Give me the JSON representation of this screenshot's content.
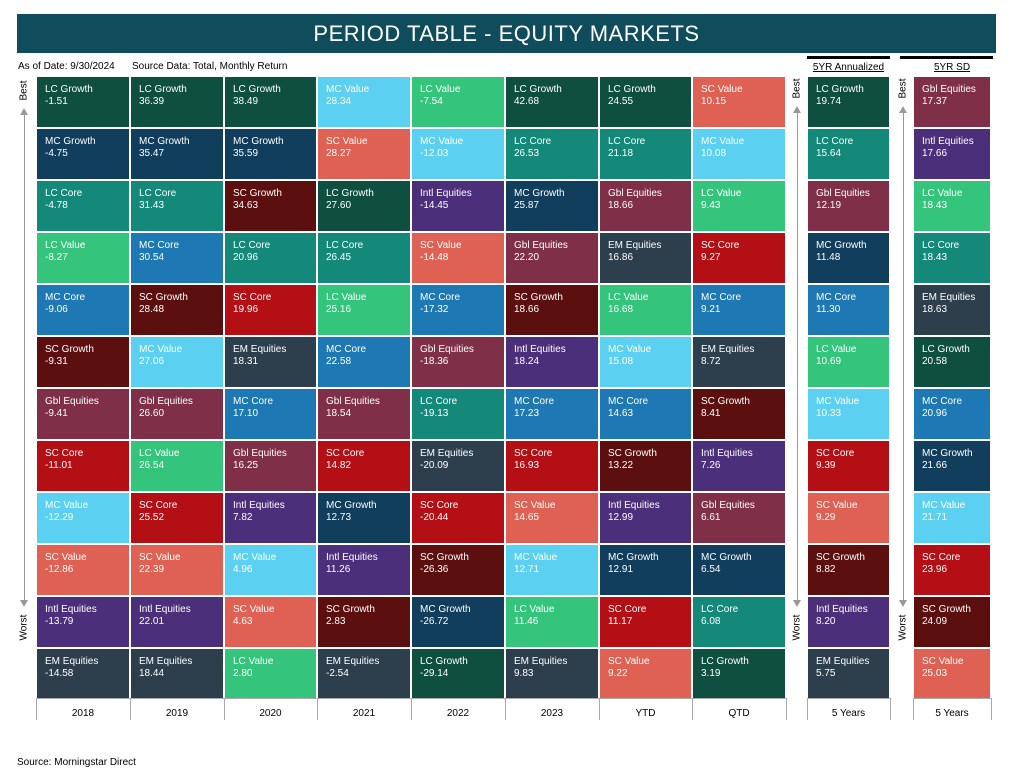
{
  "header": {
    "title": "PERIOD TABLE - EQUITY MARKETS",
    "as_of": "As of Date: 9/30/2024",
    "source_data": "Source Data: Total, Monthly Return",
    "annualized_title": "5YR Annualized",
    "sd_title": "5YR SD",
    "best_label": "Best",
    "worst_label": "Worst"
  },
  "footer": {
    "source": "Source: Morningstar Direct"
  },
  "colors": {
    "LC Growth": "#0f4f3f",
    "MC Growth": "#103e5c",
    "LC Core": "#14897a",
    "LC Value": "#34c47c",
    "MC Core": "#1e78b4",
    "SC Growth": "#5c0f0f",
    "Gbl Equities": "#7f2f48",
    "SC Core": "#b30f14",
    "MC Value": "#5cd0f0",
    "SC Value": "#de6154",
    "Intl Equities": "#4b2f7a",
    "EM Equities": "#2d3f4d"
  },
  "chart_data": {
    "type": "table",
    "title": "PERIOD TABLE - EQUITY MARKETS",
    "columns": [
      {
        "label": "2018",
        "cells": [
          {
            "name": "LC Growth",
            "value": "-1.51"
          },
          {
            "name": "MC Growth",
            "value": "-4.75"
          },
          {
            "name": "LC Core",
            "value": "-4.78"
          },
          {
            "name": "LC Value",
            "value": "-8.27"
          },
          {
            "name": "MC Core",
            "value": "-9.06"
          },
          {
            "name": "SC Growth",
            "value": "-9.31"
          },
          {
            "name": "Gbl Equities",
            "value": "-9.41"
          },
          {
            "name": "SC Core",
            "value": "-11.01"
          },
          {
            "name": "MC Value",
            "value": "-12.29"
          },
          {
            "name": "SC Value",
            "value": "-12.86"
          },
          {
            "name": "Intl Equities",
            "value": "-13.79"
          },
          {
            "name": "EM Equities",
            "value": "-14.58"
          }
        ]
      },
      {
        "label": "2019",
        "cells": [
          {
            "name": "LC Growth",
            "value": "36.39"
          },
          {
            "name": "MC Growth",
            "value": "35.47"
          },
          {
            "name": "LC Core",
            "value": "31.43"
          },
          {
            "name": "MC Core",
            "value": "30.54"
          },
          {
            "name": "SC Growth",
            "value": "28.48"
          },
          {
            "name": "MC Value",
            "value": "27.06"
          },
          {
            "name": "Gbl Equities",
            "value": "26.60"
          },
          {
            "name": "LC Value",
            "value": "26.54"
          },
          {
            "name": "SC Core",
            "value": "25.52"
          },
          {
            "name": "SC Value",
            "value": "22.39"
          },
          {
            "name": "Intl Equities",
            "value": "22.01"
          },
          {
            "name": "EM Equities",
            "value": "18.44"
          }
        ]
      },
      {
        "label": "2020",
        "cells": [
          {
            "name": "LC Growth",
            "value": "38.49"
          },
          {
            "name": "MC Growth",
            "value": "35.59"
          },
          {
            "name": "SC Growth",
            "value": "34.63"
          },
          {
            "name": "LC Core",
            "value": "20.96"
          },
          {
            "name": "SC Core",
            "value": "19.96"
          },
          {
            "name": "EM Equities",
            "value": "18.31"
          },
          {
            "name": "MC Core",
            "value": "17.10"
          },
          {
            "name": "Gbl Equities",
            "value": "16.25"
          },
          {
            "name": "Intl Equities",
            "value": "7.82"
          },
          {
            "name": "MC Value",
            "value": "4.96"
          },
          {
            "name": "SC Value",
            "value": "4.63"
          },
          {
            "name": "LC Value",
            "value": "2.80"
          }
        ]
      },
      {
        "label": "2021",
        "cells": [
          {
            "name": "MC Value",
            "value": "28.34"
          },
          {
            "name": "SC Value",
            "value": "28.27"
          },
          {
            "name": "LC Growth",
            "value": "27.60"
          },
          {
            "name": "LC Core",
            "value": "26.45"
          },
          {
            "name": "LC Value",
            "value": "25.16"
          },
          {
            "name": "MC Core",
            "value": "22.58"
          },
          {
            "name": "Gbl Equities",
            "value": "18.54"
          },
          {
            "name": "SC Core",
            "value": "14.82"
          },
          {
            "name": "MC Growth",
            "value": "12.73"
          },
          {
            "name": "Intl Equities",
            "value": "11.26"
          },
          {
            "name": "SC Growth",
            "value": "2.83"
          },
          {
            "name": "EM Equities",
            "value": "-2.54"
          }
        ]
      },
      {
        "label": "2022",
        "cells": [
          {
            "name": "LC Value",
            "value": "-7.54"
          },
          {
            "name": "MC Value",
            "value": "-12.03"
          },
          {
            "name": "Intl Equities",
            "value": "-14.45"
          },
          {
            "name": "SC Value",
            "value": "-14.48"
          },
          {
            "name": "MC Core",
            "value": "-17.32"
          },
          {
            "name": "Gbl Equities",
            "value": "-18.36"
          },
          {
            "name": "LC Core",
            "value": "-19.13"
          },
          {
            "name": "EM Equities",
            "value": "-20.09"
          },
          {
            "name": "SC Core",
            "value": "-20.44"
          },
          {
            "name": "SC Growth",
            "value": "-26.36"
          },
          {
            "name": "MC Growth",
            "value": "-26.72"
          },
          {
            "name": "LC Growth",
            "value": "-29.14"
          }
        ]
      },
      {
        "label": "2023",
        "cells": [
          {
            "name": "LC Growth",
            "value": "42.68"
          },
          {
            "name": "LC Core",
            "value": "26.53"
          },
          {
            "name": "MC Growth",
            "value": "25.87"
          },
          {
            "name": "Gbl Equities",
            "value": "22.20"
          },
          {
            "name": "SC Growth",
            "value": "18.66"
          },
          {
            "name": "Intl Equities",
            "value": "18.24"
          },
          {
            "name": "MC Core",
            "value": "17.23"
          },
          {
            "name": "SC Core",
            "value": "16.93"
          },
          {
            "name": "SC Value",
            "value": "14.65"
          },
          {
            "name": "MC Value",
            "value": "12.71"
          },
          {
            "name": "LC Value",
            "value": "11.46"
          },
          {
            "name": "EM Equities",
            "value": "9.83"
          }
        ]
      },
      {
        "label": "YTD",
        "cells": [
          {
            "name": "LC Growth",
            "value": "24.55"
          },
          {
            "name": "LC Core",
            "value": "21.18"
          },
          {
            "name": "Gbl Equities",
            "value": "18.66"
          },
          {
            "name": "EM Equities",
            "value": "16.86"
          },
          {
            "name": "LC Value",
            "value": "16.68"
          },
          {
            "name": "MC Value",
            "value": "15.08"
          },
          {
            "name": "MC Core",
            "value": "14.63"
          },
          {
            "name": "SC Growth",
            "value": "13.22"
          },
          {
            "name": "Intl Equities",
            "value": "12.99"
          },
          {
            "name": "MC Growth",
            "value": "12.91"
          },
          {
            "name": "SC Core",
            "value": "11.17"
          },
          {
            "name": "SC Value",
            "value": "9.22"
          }
        ]
      },
      {
        "label": "QTD",
        "cells": [
          {
            "name": "SC Value",
            "value": "10.15"
          },
          {
            "name": "MC Value",
            "value": "10.08"
          },
          {
            "name": "LC Value",
            "value": "9.43"
          },
          {
            "name": "SC Core",
            "value": "9.27"
          },
          {
            "name": "MC Core",
            "value": "9.21"
          },
          {
            "name": "EM Equities",
            "value": "8.72"
          },
          {
            "name": "SC Growth",
            "value": "8.41"
          },
          {
            "name": "Intl Equities",
            "value": "7.26"
          },
          {
            "name": "Gbl Equities",
            "value": "6.61"
          },
          {
            "name": "MC Growth",
            "value": "6.54"
          },
          {
            "name": "LC Core",
            "value": "6.08"
          },
          {
            "name": "LC Growth",
            "value": "3.19"
          }
        ]
      }
    ],
    "annualized": {
      "label": "5 Years",
      "cells": [
        {
          "name": "LC Growth",
          "value": "19.74"
        },
        {
          "name": "LC Core",
          "value": "15.64"
        },
        {
          "name": "Gbl Equities",
          "value": "12.19"
        },
        {
          "name": "MC Growth",
          "value": "11.48"
        },
        {
          "name": "MC Core",
          "value": "11.30"
        },
        {
          "name": "LC Value",
          "value": "10.69"
        },
        {
          "name": "MC Value",
          "value": "10.33"
        },
        {
          "name": "SC Core",
          "value": "9.39"
        },
        {
          "name": "SC Value",
          "value": "9.29"
        },
        {
          "name": "SC Growth",
          "value": "8.82"
        },
        {
          "name": "Intl Equities",
          "value": "8.20"
        },
        {
          "name": "EM Equities",
          "value": "5.75"
        }
      ]
    },
    "sd": {
      "label": "5 Years",
      "cells": [
        {
          "name": "Gbl Equities",
          "value": "17.37"
        },
        {
          "name": "Intl Equities",
          "value": "17.66"
        },
        {
          "name": "LC Value",
          "value": "18.43"
        },
        {
          "name": "LC Core",
          "value": "18.43"
        },
        {
          "name": "EM Equities",
          "value": "18.63"
        },
        {
          "name": "LC Growth",
          "value": "20.58"
        },
        {
          "name": "MC Core",
          "value": "20.96"
        },
        {
          "name": "MC Growth",
          "value": "21.66"
        },
        {
          "name": "MC Value",
          "value": "21.71"
        },
        {
          "name": "SC Core",
          "value": "23.96"
        },
        {
          "name": "SC Growth",
          "value": "24.09"
        },
        {
          "name": "SC Value",
          "value": "25.03"
        }
      ]
    }
  }
}
